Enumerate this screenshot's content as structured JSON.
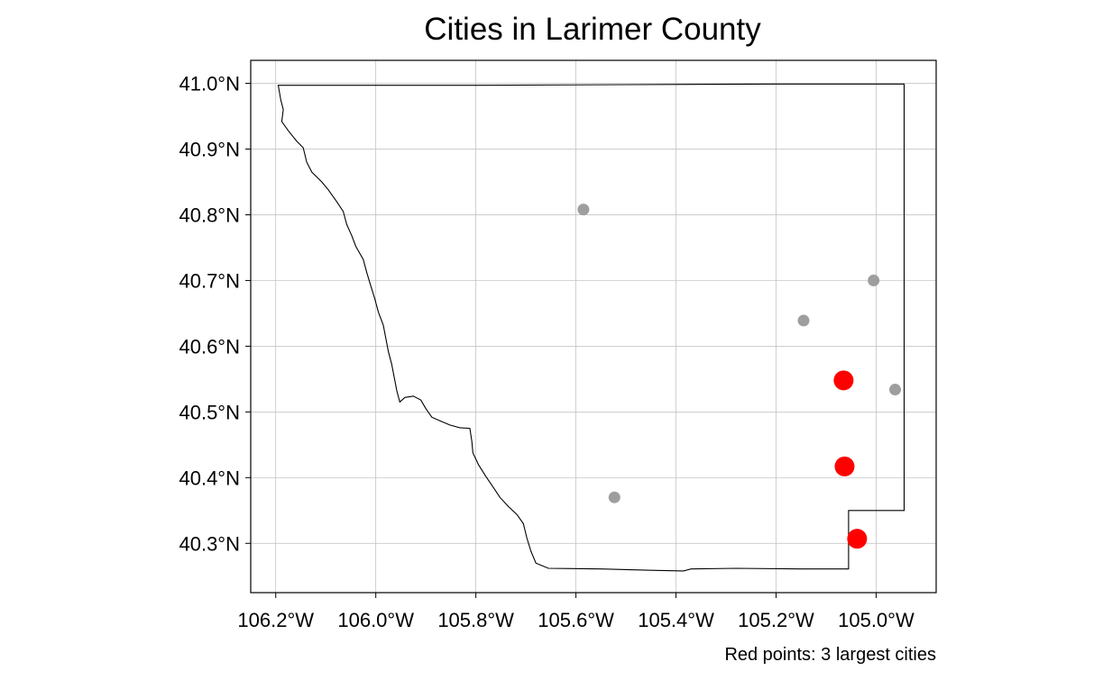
{
  "chart_data": {
    "type": "scatter",
    "title": "Cities in Larimer County",
    "caption": "Red points: 3 largest cities",
    "xlabel": "",
    "ylabel": "",
    "xlim": [
      -106.25,
      -104.88
    ],
    "ylim": [
      40.225,
      41.035
    ],
    "grid": true,
    "x_ticks": [
      {
        "value": -106.2,
        "label": "106.2°W"
      },
      {
        "value": -106.0,
        "label": "106.0°W"
      },
      {
        "value": -105.8,
        "label": "105.8°W"
      },
      {
        "value": -105.6,
        "label": "105.6°W"
      },
      {
        "value": -105.4,
        "label": "105.4°W"
      },
      {
        "value": -105.2,
        "label": "105.2°W"
      },
      {
        "value": -105.0,
        "label": "105.0°W"
      }
    ],
    "y_ticks": [
      {
        "value": 40.3,
        "label": "40.3°N"
      },
      {
        "value": 40.4,
        "label": "40.4°N"
      },
      {
        "value": 40.5,
        "label": "40.5°N"
      },
      {
        "value": 40.6,
        "label": "40.6°N"
      },
      {
        "value": 40.7,
        "label": "40.7°N"
      },
      {
        "value": 40.8,
        "label": "40.8°N"
      },
      {
        "value": 40.9,
        "label": "40.9°N"
      },
      {
        "value": 41.0,
        "label": "41.0°N"
      }
    ],
    "cities_other": [
      {
        "lon": -105.585,
        "lat": 40.808
      },
      {
        "lon": -105.005,
        "lat": 40.7
      },
      {
        "lon": -105.145,
        "lat": 40.639
      },
      {
        "lon": -104.962,
        "lat": 40.534
      },
      {
        "lon": -105.523,
        "lat": 40.37
      }
    ],
    "cities_largest": [
      {
        "lon": -105.065,
        "lat": 40.548
      },
      {
        "lon": -105.063,
        "lat": 40.417
      },
      {
        "lon": -105.038,
        "lat": 40.307
      }
    ],
    "county_boundary": [
      [
        -106.195,
        40.997
      ],
      [
        -106.19,
        40.975
      ],
      [
        -106.185,
        40.96
      ],
      [
        -106.188,
        40.942
      ],
      [
        -106.175,
        40.928
      ],
      [
        -106.158,
        40.912
      ],
      [
        -106.145,
        40.902
      ],
      [
        -106.138,
        40.88
      ],
      [
        -106.128,
        40.865
      ],
      [
        -106.108,
        40.85
      ],
      [
        -106.095,
        40.838
      ],
      [
        -106.078,
        40.82
      ],
      [
        -106.065,
        40.805
      ],
      [
        -106.058,
        40.785
      ],
      [
        -106.048,
        40.768
      ],
      [
        -106.04,
        40.752
      ],
      [
        -106.025,
        40.732
      ],
      [
        -106.018,
        40.712
      ],
      [
        -106.01,
        40.692
      ],
      [
        -106.002,
        40.672
      ],
      [
        -105.995,
        40.652
      ],
      [
        -105.985,
        40.632
      ],
      [
        -105.98,
        40.612
      ],
      [
        -105.975,
        40.592
      ],
      [
        -105.968,
        40.572
      ],
      [
        -105.963,
        40.552
      ],
      [
        -105.958,
        40.532
      ],
      [
        -105.952,
        40.515
      ],
      [
        -105.942,
        40.522
      ],
      [
        -105.925,
        40.524
      ],
      [
        -105.91,
        40.518
      ],
      [
        -105.9,
        40.505
      ],
      [
        -105.888,
        40.492
      ],
      [
        -105.87,
        40.486
      ],
      [
        -105.852,
        40.48
      ],
      [
        -105.832,
        40.476
      ],
      [
        -105.812,
        40.475
      ],
      [
        -105.808,
        40.455
      ],
      [
        -105.806,
        40.438
      ],
      [
        -105.795,
        40.42
      ],
      [
        -105.78,
        40.402
      ],
      [
        -105.765,
        40.385
      ],
      [
        -105.752,
        40.37
      ],
      [
        -105.735,
        40.356
      ],
      [
        -105.718,
        40.344
      ],
      [
        -105.705,
        40.33
      ],
      [
        -105.698,
        40.308
      ],
      [
        -105.69,
        40.288
      ],
      [
        -105.68,
        40.27
      ],
      [
        -105.655,
        40.262
      ],
      [
        -105.55,
        40.261
      ],
      [
        -105.45,
        40.259
      ],
      [
        -105.385,
        40.258
      ],
      [
        -105.37,
        40.261
      ],
      [
        -105.28,
        40.262
      ],
      [
        -105.15,
        40.261
      ],
      [
        -105.055,
        40.261
      ],
      [
        -105.055,
        40.35
      ],
      [
        -104.944,
        40.35
      ],
      [
        -104.944,
        40.999
      ],
      [
        -105.2,
        40.999
      ],
      [
        -105.5,
        40.998
      ],
      [
        -105.8,
        40.997
      ],
      [
        -106.1,
        40.997
      ],
      [
        -106.195,
        40.997
      ]
    ]
  }
}
